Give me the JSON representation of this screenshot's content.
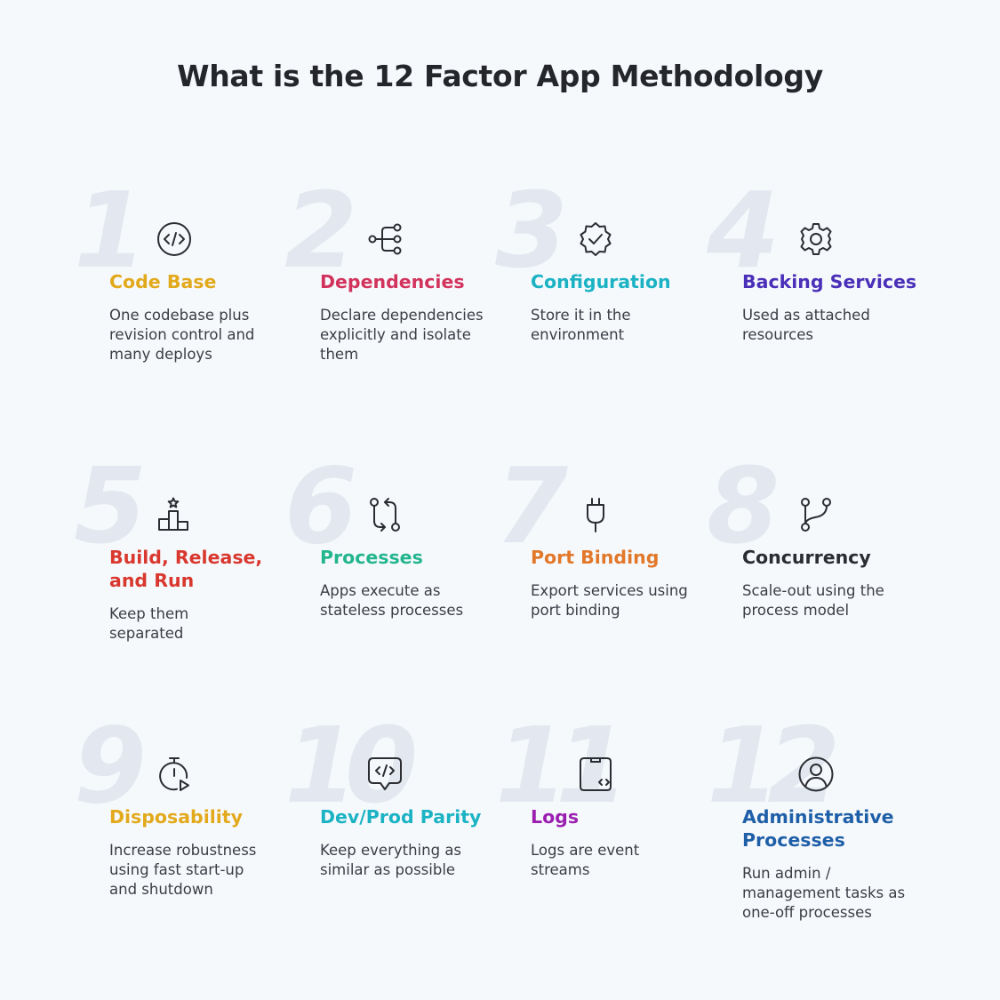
{
  "title": "What is the 12 Factor App Methodology",
  "factors": [
    {
      "number": "1",
      "title": "Code Base",
      "description": "One codebase plus revision control and many deploys",
      "color": "#e2a91c",
      "icon": "code-icon"
    },
    {
      "number": "2",
      "title": "Dependencies",
      "description": "Declare dependencies explicitly and isolate them",
      "color": "#d2335c",
      "icon": "dependency-tree-icon"
    },
    {
      "number": "3",
      "title": "Configuration",
      "description": "Store it in the environment",
      "color": "#1bb3c4",
      "icon": "verified-badge-icon"
    },
    {
      "number": "4",
      "title": "Backing Services",
      "description": "Used as attached resources",
      "color": "#4a2fb8",
      "icon": "gear-icon"
    },
    {
      "number": "5",
      "title": "Build, Release, and Run",
      "description": "Keep them separated",
      "color": "#d8382e",
      "icon": "podium-icon"
    },
    {
      "number": "6",
      "title": "Processes",
      "description": "Apps execute as stateless processes",
      "color": "#23b58e",
      "icon": "swap-arrows-icon"
    },
    {
      "number": "7",
      "title": "Port Binding",
      "description": "Export services using port binding",
      "color": "#e2782a",
      "icon": "plug-icon"
    },
    {
      "number": "8",
      "title": "Concurrency",
      "description": "Scale-out using the process model",
      "color": "#2b2d33",
      "icon": "branch-icon"
    },
    {
      "number": "9",
      "title": "Disposability",
      "description": "Increase robustness using fast start-up and shutdown",
      "color": "#e2a91c",
      "icon": "stopwatch-icon"
    },
    {
      "number": "10",
      "title": "Dev/Prod Parity",
      "description": "Keep everything as similar as possible",
      "color": "#1bb3c4",
      "icon": "code-bubble-icon"
    },
    {
      "number": "11",
      "title": "Logs",
      "description": "Logs are event streams",
      "color": "#9a1fb0",
      "icon": "log-file-icon"
    },
    {
      "number": "12",
      "title": "Administrative Processes",
      "description": "Run admin / management tasks as one-off processes",
      "color": "#1f5fa8",
      "icon": "user-circle-icon"
    }
  ]
}
